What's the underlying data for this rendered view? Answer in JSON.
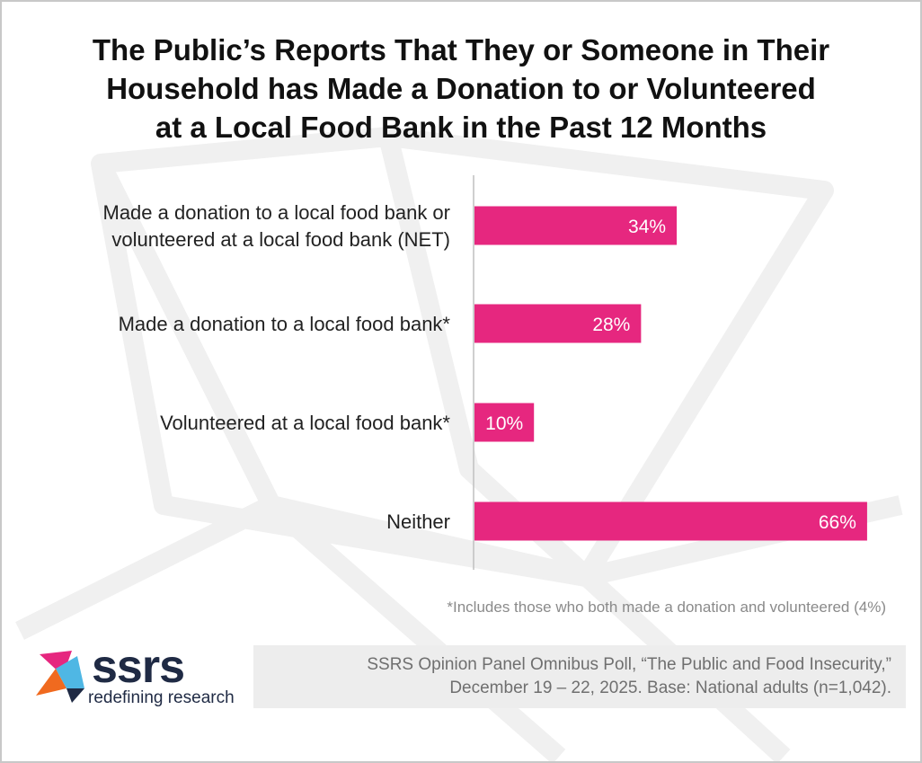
{
  "title_lines": [
    "The Public’s Reports That They or Someone in Their",
    "Household has Made a Donation to or Volunteered",
    "at a Local Food Bank in the Past 12 Months"
  ],
  "chart_data": {
    "type": "bar",
    "orientation": "horizontal",
    "categories": [
      [
        "Made a donation to a local food bank or",
        "volunteered at a local food bank (NET)"
      ],
      [
        "Made a donation to a local food bank*"
      ],
      [
        "Volunteered at a local food bank*"
      ],
      [
        "Neither"
      ]
    ],
    "values": [
      34,
      28,
      10,
      66
    ],
    "value_labels": [
      "34%",
      "28%",
      "10%",
      "66%"
    ],
    "xlim": [
      0,
      100
    ],
    "grid": false,
    "bar_color": "#e6277f"
  },
  "footnote": "*Includes those who both made a donation and volunteered (4%)",
  "source_lines": [
    "SSRS Opinion Panel Omnibus Poll, “The Public and Food Insecurity,”",
    "December 19 – 22, 2025. Base: National adults (n=1,042)."
  ],
  "logo": {
    "name": "ssrs",
    "tagline": "redefining research",
    "colors": [
      "#f06a1f",
      "#e6277f",
      "#4fb7e4",
      "#1f2a44"
    ]
  }
}
